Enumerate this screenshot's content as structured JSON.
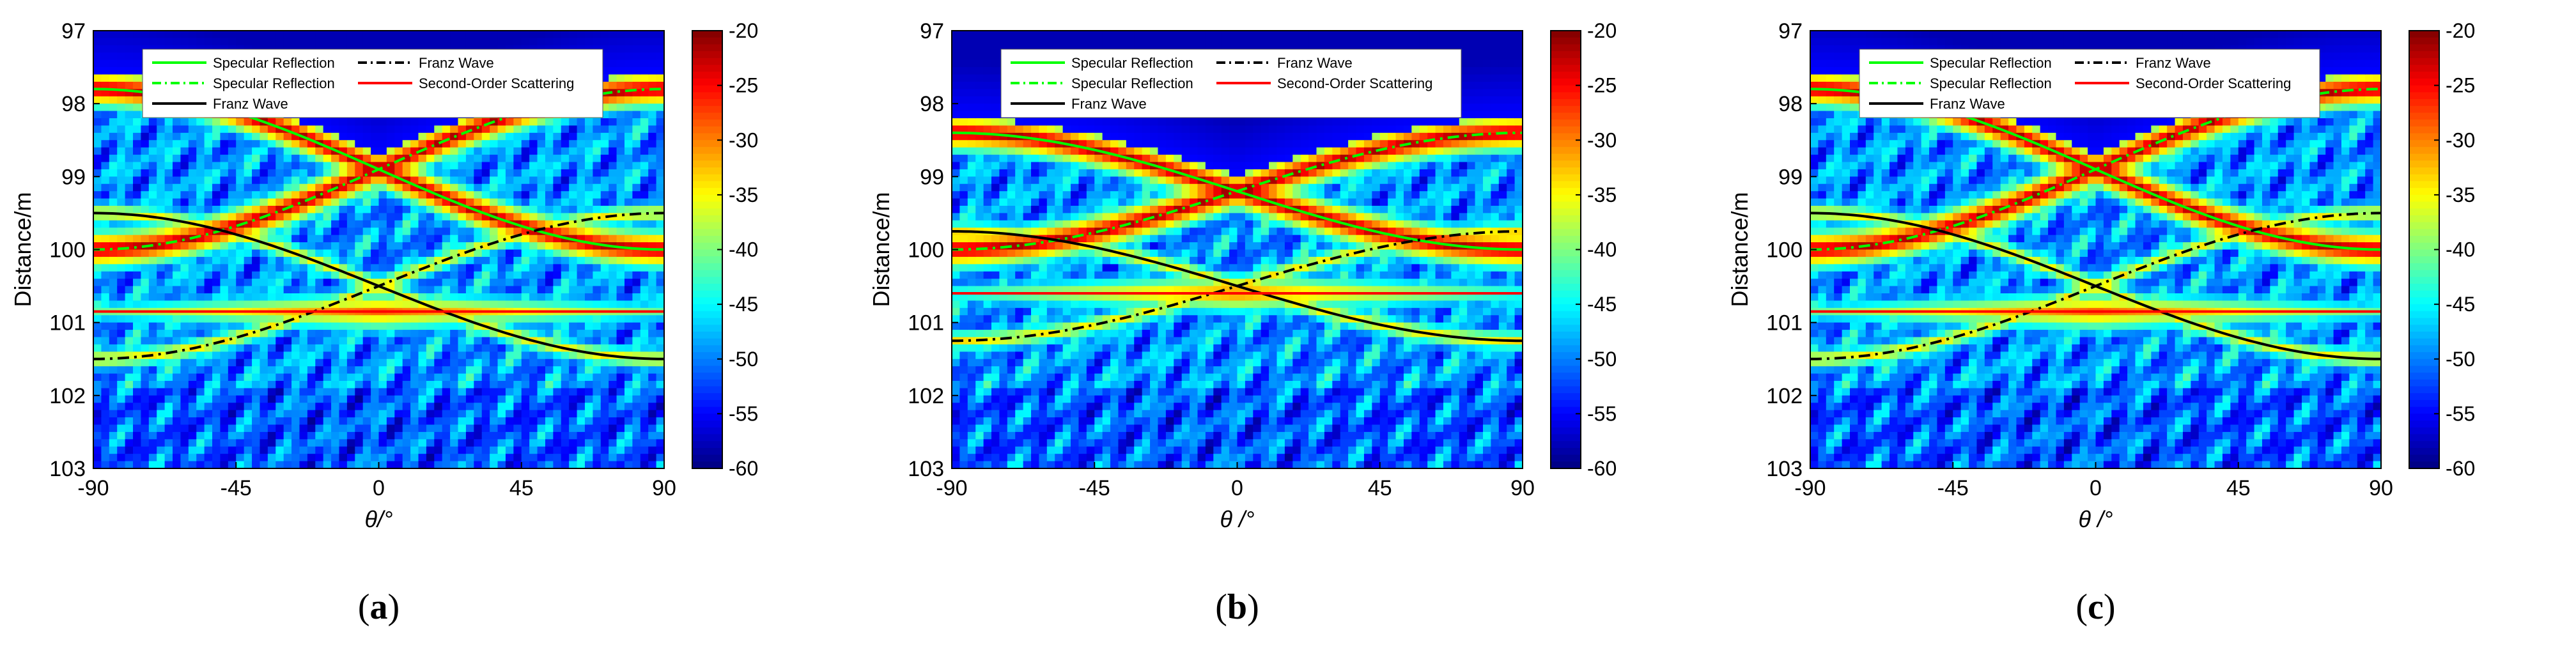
{
  "figure": {
    "colors": {
      "specular": "#00ff00",
      "franz": "#000000",
      "second_order": "#ff0000",
      "cmap_low": "#00007f",
      "cmap_high": "#7f0000"
    }
  },
  "chart_data": [
    {
      "type": "heatmap",
      "caption": "a",
      "xlabel": "θ/°",
      "ylabel": "Distance/m",
      "xlim": [
        -90,
        90
      ],
      "ylim": [
        97,
        103
      ],
      "xticks": [
        "-90",
        "-45",
        "0",
        "45",
        "90"
      ],
      "yticks": [
        "97",
        "98",
        "99",
        "100",
        "101",
        "102",
        "103"
      ],
      "colorbar": {
        "range": [
          -60,
          -20
        ],
        "ticks": [
          "-20",
          "-25",
          "-30",
          "-35",
          "-40",
          "-45",
          "-50",
          "-55",
          "-60"
        ]
      },
      "legend": [
        {
          "label": "Specular Reflection",
          "style": "solid",
          "color": "#00ff00"
        },
        {
          "label": "Franz Wave",
          "style": "dashdot",
          "color": "#000000"
        },
        {
          "label": "Specular Reflection",
          "style": "dashdot",
          "color": "#00ff00"
        },
        {
          "label": "Second-Order Scattering",
          "style": "solid",
          "color": "#ff0000"
        },
        {
          "label": "Franz Wave",
          "style": "solid",
          "color": "#000000"
        }
      ],
      "params": {
        "spec_base": 98.9,
        "spec_amp": 1.1,
        "franz_base": 100.5,
        "franz_amp": 1.0,
        "second_order": 100.85
      }
    },
    {
      "type": "heatmap",
      "caption": "b",
      "xlabel": "θ /°",
      "ylabel": "Distance/m",
      "xlim": [
        -90,
        90
      ],
      "ylim": [
        97,
        103
      ],
      "xticks": [
        "-90",
        "-45",
        "0",
        "45",
        "90"
      ],
      "yticks": [
        "97",
        "98",
        "99",
        "100",
        "101",
        "102",
        "103"
      ],
      "colorbar": {
        "range": [
          -60,
          -20
        ],
        "ticks": [
          "-20",
          "-25",
          "-30",
          "-35",
          "-40",
          "-45",
          "-50",
          "-55",
          "-60"
        ]
      },
      "legend": [
        {
          "label": "Specular Reflection",
          "style": "solid",
          "color": "#00ff00"
        },
        {
          "label": "Franz Wave",
          "style": "dashdot",
          "color": "#000000"
        },
        {
          "label": "Specular Reflection",
          "style": "dashdot",
          "color": "#00ff00"
        },
        {
          "label": "Second-Order Scattering",
          "style": "solid",
          "color": "#ff0000"
        },
        {
          "label": "Franz Wave",
          "style": "solid",
          "color": "#000000"
        }
      ],
      "params": {
        "spec_base": 99.2,
        "spec_amp": 0.8,
        "franz_base": 100.5,
        "franz_amp": 0.75,
        "second_order": 100.6
      }
    },
    {
      "type": "heatmap",
      "caption": "c",
      "xlabel": "θ /°",
      "ylabel": "Distance/m",
      "xlim": [
        -90,
        90
      ],
      "ylim": [
        97,
        103
      ],
      "xticks": [
        "-90",
        "-45",
        "0",
        "45",
        "90"
      ],
      "yticks": [
        "97",
        "98",
        "99",
        "100",
        "101",
        "102",
        "103"
      ],
      "colorbar": {
        "range": [
          -60,
          -20
        ],
        "ticks": [
          "-20",
          "-25",
          "-30",
          "-35",
          "-40",
          "-45",
          "-50",
          "-55",
          "-60"
        ]
      },
      "legend": [
        {
          "label": "Specular Reflection",
          "style": "solid",
          "color": "#00ff00"
        },
        {
          "label": "Franz Wave",
          "style": "dashdot",
          "color": "#000000"
        },
        {
          "label": "Specular Reflection",
          "style": "dashdot",
          "color": "#00ff00"
        },
        {
          "label": "Second-Order Scattering",
          "style": "solid",
          "color": "#ff0000"
        },
        {
          "label": "Franz Wave",
          "style": "solid",
          "color": "#000000"
        }
      ],
      "params": {
        "spec_base": 98.9,
        "spec_amp": 1.1,
        "franz_base": 100.5,
        "franz_amp": 1.0,
        "second_order": 100.85
      }
    }
  ]
}
